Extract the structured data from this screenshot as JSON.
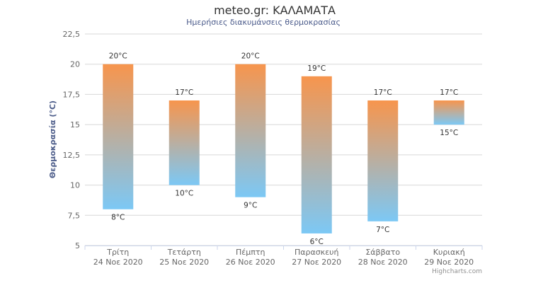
{
  "chart_data": {
    "type": "columnrange",
    "title": "meteo.gr: ΚΑΛΑΜΑΤΑ",
    "subtitle": "Ημερήσιες διακυμάνσεις θερμοκρασίας",
    "ylabel": "Θερμοκρασία (°C)",
    "ylim": [
      5,
      22.5
    ],
    "yticks": [
      "5",
      "7,5",
      "10",
      "12,5",
      "15",
      "17,5",
      "20",
      "22,5"
    ],
    "ytick_values": [
      5,
      7.5,
      10,
      12.5,
      15,
      17.5,
      20,
      22.5
    ],
    "grid": true,
    "categories": [
      {
        "day": "Τρίτη",
        "date": "24 Νοε 2020"
      },
      {
        "day": "Τετάρτη",
        "date": "25 Νοε 2020"
      },
      {
        "day": "Πέμπτη",
        "date": "26 Νοε 2020"
      },
      {
        "day": "Παρασκευή",
        "date": "27 Νοε 2020"
      },
      {
        "day": "Σάββατο",
        "date": "28 Νοε 2020"
      },
      {
        "day": "Κυριακή",
        "date": "29 Νοε 2020"
      }
    ],
    "low": [
      8,
      10,
      9,
      6,
      7,
      15
    ],
    "high": [
      20,
      17,
      20,
      19,
      17,
      17
    ],
    "low_labels": [
      "8°C",
      "10°C",
      "9°C",
      "6°C",
      "7°C",
      "15°C"
    ],
    "high_labels": [
      "20°C",
      "17°C",
      "20°C",
      "19°C",
      "17°C",
      "17°C"
    ],
    "colors": {
      "warm": "#f7954d",
      "cold": "#7cc8f5",
      "grid": "#d8d8d8",
      "axis": "#ccd6eb"
    }
  },
  "credit": "Highcharts.com"
}
